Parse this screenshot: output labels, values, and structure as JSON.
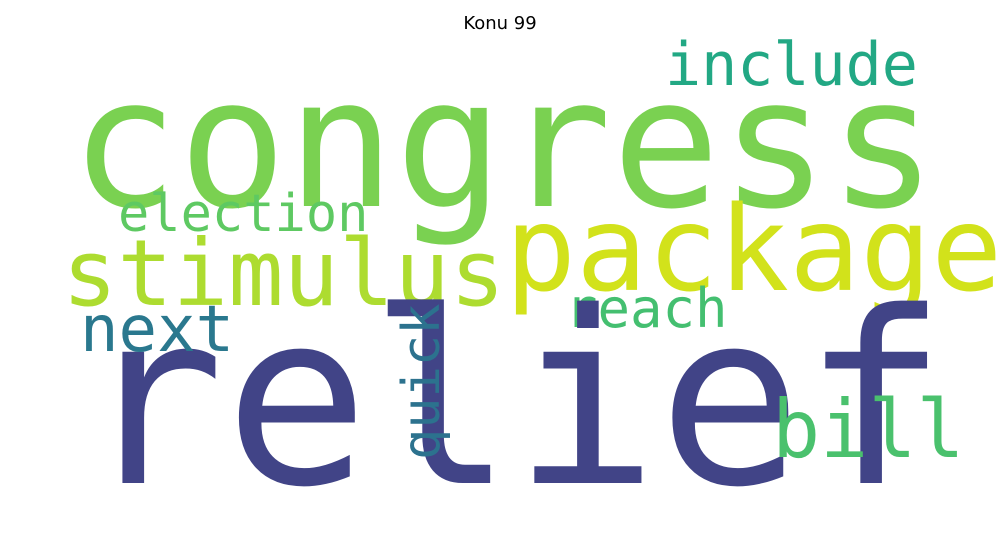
{
  "title": "Konu 99",
  "words": [
    {
      "text": "congress",
      "color": "#7ad151"
    },
    {
      "text": "relief",
      "color": "#414487"
    },
    {
      "text": "package",
      "color": "#d2e21b"
    },
    {
      "text": "stimulus",
      "color": "#addc30"
    },
    {
      "text": "include",
      "color": "#22a884"
    },
    {
      "text": "election",
      "color": "#5ec962"
    },
    {
      "text": "next",
      "color": "#2a788e"
    },
    {
      "text": "reach",
      "color": "#44bf70"
    },
    {
      "text": "bill",
      "color": "#4ac16d"
    },
    {
      "text": "quick",
      "color": "#2c728e"
    }
  ]
}
